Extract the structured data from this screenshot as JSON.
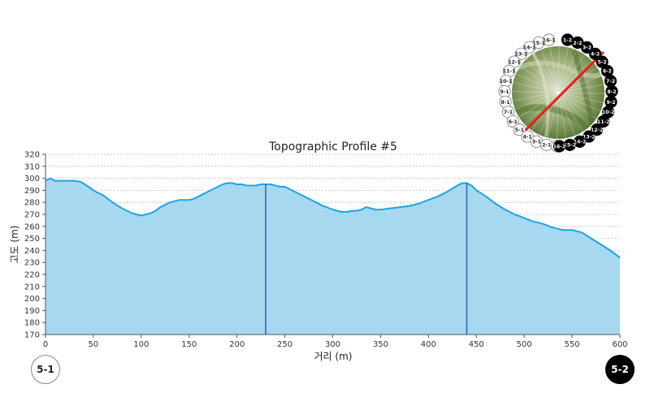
{
  "chart_data": {
    "type": "area",
    "title": "Topographic Profile #5",
    "xlabel": "거리 (m)",
    "ylabel": "고도 (m)",
    "xlim": [
      0,
      600
    ],
    "ylim": [
      170,
      320
    ],
    "xticks": [
      0,
      50,
      100,
      150,
      200,
      250,
      300,
      350,
      400,
      450,
      500,
      550,
      600
    ],
    "yticks": [
      170,
      180,
      190,
      200,
      210,
      220,
      230,
      240,
      250,
      260,
      270,
      280,
      290,
      300,
      310,
      320
    ],
    "grid": "horizontal dashed",
    "series": [
      {
        "x": [
          0,
          5,
          10,
          20,
          30,
          37,
          45,
          52,
          60,
          70,
          80,
          90,
          95,
          100,
          105,
          110,
          115,
          120,
          130,
          135,
          140,
          145,
          150,
          155,
          160,
          165,
          170,
          180,
          185,
          190,
          195,
          200,
          205,
          210,
          220,
          225,
          230,
          235,
          240,
          245,
          250,
          255,
          260,
          270,
          280,
          290,
          300,
          305,
          310,
          315,
          320,
          325,
          330,
          335,
          340,
          345,
          350,
          360,
          370,
          380,
          390,
          400,
          410,
          420,
          430,
          435,
          440,
          445,
          450,
          460,
          470,
          480,
          490,
          500,
          510,
          520,
          530,
          540,
          550,
          555,
          560,
          570,
          580,
          590,
          600
        ],
        "values": [
          298,
          300,
          298,
          298,
          298,
          297,
          293,
          289,
          286,
          280,
          275,
          271,
          270,
          269,
          270,
          271,
          273,
          276,
          280,
          281,
          282,
          282,
          282,
          283,
          285,
          287,
          289,
          293,
          295,
          296,
          296,
          295,
          295,
          294,
          294,
          295,
          295,
          295,
          294,
          293,
          293,
          291,
          289,
          285,
          281,
          277,
          274,
          273,
          272,
          272,
          273,
          273,
          274,
          276,
          275,
          274,
          274,
          275,
          276,
          277,
          279,
          282,
          285,
          289,
          294,
          296,
          296,
          294,
          290,
          285,
          279,
          274,
          270,
          267,
          264,
          262,
          259,
          257,
          257,
          256,
          255,
          250,
          245,
          240,
          234
        ]
      }
    ],
    "markers": [
      {
        "x": 230,
        "y": 295
      },
      {
        "x": 440,
        "y": 296
      }
    ],
    "colors": {
      "fill": "#a6d8ef",
      "line": "#1aa5e6",
      "marker": "#2f5fb0",
      "grid": "#bdbdbd"
    }
  },
  "endpoints": {
    "start": "5-1",
    "end": "5-2"
  },
  "minimap": {
    "line_color": "#e81c1c",
    "labels_white": [
      "16-1",
      "15-1",
      "14-1",
      "13-1",
      "12-1",
      "11-1",
      "10-1",
      "9-1",
      "8-1",
      "7-1",
      "6-1",
      "5-1",
      "4-1",
      "3-1",
      "2-1",
      "1-1"
    ],
    "labels_black": [
      "1-2",
      "2-2",
      "3-2",
      "4-2",
      "5-2",
      "6-2",
      "7-2",
      "8-2",
      "9-2",
      "10-2",
      "11-2",
      "12-2",
      "13-2",
      "14-2",
      "15-2",
      "16-2"
    ]
  }
}
